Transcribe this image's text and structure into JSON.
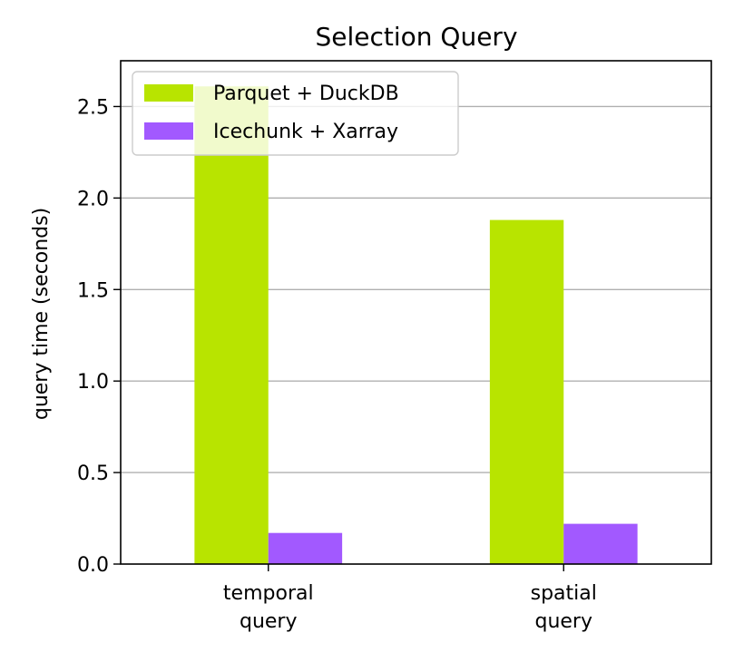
{
  "chart_data": {
    "type": "bar",
    "title": "Selection Query",
    "xlabel": "",
    "ylabel": "query time (seconds)",
    "categories": [
      [
        "temporal",
        "query"
      ],
      [
        "spatial",
        "query"
      ]
    ],
    "series": [
      {
        "name": "Parquet + DuckDB",
        "color": "#b8e400",
        "values": [
          2.61,
          1.88
        ]
      },
      {
        "name": "Icechunk + Xarray",
        "color": "#a259ff",
        "values": [
          0.17,
          0.22
        ]
      }
    ],
    "ylim": [
      0,
      2.75
    ],
    "yticks": [
      0.0,
      0.5,
      1.0,
      1.5,
      2.0,
      2.5
    ],
    "ytick_labels": [
      "0.0",
      "0.5",
      "1.0",
      "1.5",
      "2.0",
      "2.5"
    ],
    "grid": "y",
    "legend_position": "upper-left"
  }
}
